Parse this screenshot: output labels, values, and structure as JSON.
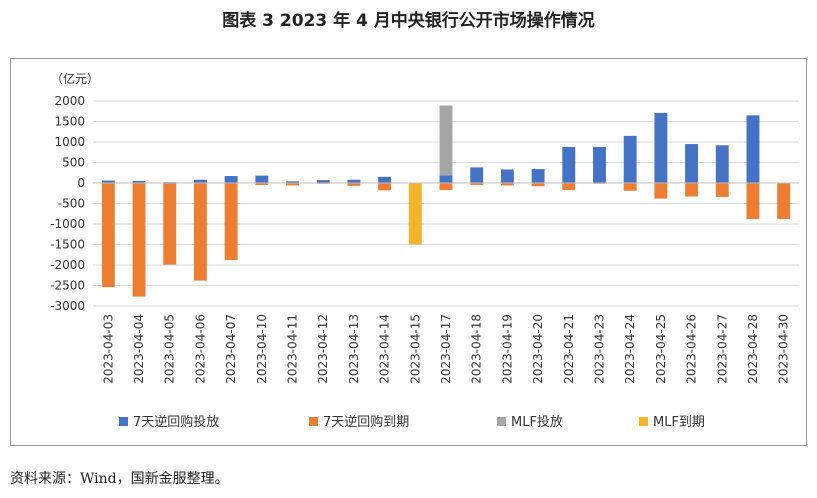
{
  "title": "图表 3  2023 年 4 月中央银行公开市场操作情况",
  "source": "资料来源：Wind，国新金服整理。",
  "chart_data": {
    "type": "bar",
    "stacked": true,
    "unit_label": "（亿元）",
    "ylim": [
      -3000,
      2000
    ],
    "yticks": [
      2000,
      1500,
      1000,
      500,
      0,
      -500,
      -1000,
      -1500,
      -2000,
      -2500,
      -3000
    ],
    "grid": true,
    "legend_position": "bottom",
    "categories": [
      "2023-04-03",
      "2023-04-04",
      "2023-04-05",
      "2023-04-06",
      "2023-04-07",
      "2023-04-10",
      "2023-04-11",
      "2023-04-12",
      "2023-04-13",
      "2023-04-14",
      "2023-04-15",
      "2023-04-17",
      "2023-04-18",
      "2023-04-19",
      "2023-04-20",
      "2023-04-21",
      "2023-04-23",
      "2023-04-24",
      "2023-04-25",
      "2023-04-26",
      "2023-04-27",
      "2023-04-28",
      "2023-04-30"
    ],
    "series": [
      {
        "name": "7天逆回购投放",
        "color": "#4472C4",
        "values": [
          60,
          50,
          20,
          80,
          170,
          180,
          40,
          70,
          80,
          150,
          0,
          190,
          380,
          330,
          340,
          880,
          880,
          1150,
          1710,
          950,
          920,
          1650,
          0
        ]
      },
      {
        "name": "7天逆回购到期",
        "color": "#ED7D31",
        "values": [
          -2540,
          -2770,
          -1990,
          -2380,
          -1880,
          -50,
          -60,
          -20,
          -70,
          -180,
          0,
          -170,
          -50,
          -60,
          -80,
          -170,
          -20,
          -190,
          -380,
          -330,
          -340,
          -880,
          -880
        ]
      },
      {
        "name": "MLF投放",
        "color": "#A5A5A5",
        "values": [
          0,
          0,
          0,
          0,
          0,
          0,
          0,
          0,
          0,
          0,
          0,
          1700,
          0,
          0,
          0,
          0,
          0,
          0,
          0,
          0,
          0,
          0,
          0
        ]
      },
      {
        "name": "MLF到期",
        "color": "#F4B32A",
        "values": [
          0,
          0,
          0,
          0,
          0,
          0,
          0,
          0,
          0,
          0,
          -1500,
          0,
          0,
          0,
          0,
          0,
          0,
          0,
          0,
          0,
          0,
          0,
          0
        ]
      }
    ]
  }
}
